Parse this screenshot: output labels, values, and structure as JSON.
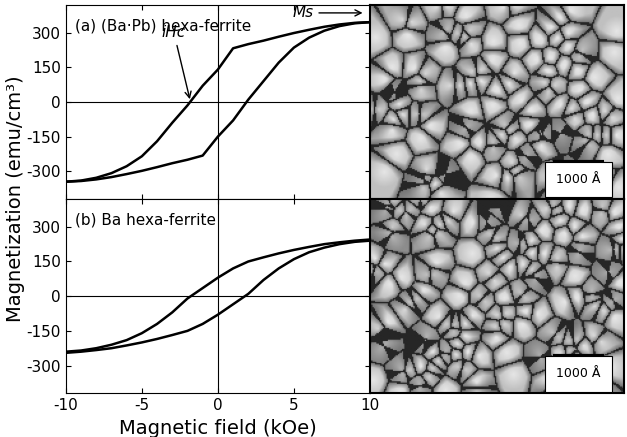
{
  "chart_data": [
    {
      "type": "line",
      "label": "(a) (Ba·Pb) hexa-ferrite",
      "xlim": [
        -10,
        10
      ],
      "xticks": [
        -10,
        -5,
        0,
        5,
        10
      ],
      "ylim": [
        -420,
        420
      ],
      "yticks": [
        -300,
        -150,
        0,
        150,
        300
      ],
      "tick_labels": "y",
      "series": [
        {
          "color": "#000000",
          "x": [
            -10,
            -9,
            -8,
            -7,
            -6,
            -5,
            -4,
            -3,
            -2,
            -1,
            0,
            1,
            2,
            3,
            4,
            5,
            6,
            7,
            8,
            9,
            10
          ],
          "values": [
            -345,
            -342,
            -335,
            -325,
            -312,
            -298,
            -282,
            -265,
            -250,
            -232,
            -150,
            -80,
            10,
            90,
            170,
            235,
            278,
            308,
            328,
            340,
            345
          ]
        },
        {
          "color": "#000000",
          "x": [
            10,
            9,
            8,
            7,
            6,
            5,
            4,
            3,
            2,
            1,
            0,
            -1,
            -2,
            -3,
            -4,
            -5,
            -6,
            -7,
            -8,
            -9,
            -10
          ],
          "values": [
            345,
            342,
            335,
            325,
            312,
            298,
            282,
            265,
            250,
            232,
            140,
            70,
            -15,
            -90,
            -170,
            -235,
            -278,
            -308,
            -328,
            -340,
            -345
          ]
        }
      ],
      "annotations": [
        {
          "text": "iHc",
          "x": -1.8,
          "y": 0
        },
        {
          "text": "Ms",
          "x": 9.7,
          "y": 385
        }
      ]
    },
    {
      "type": "line",
      "label": "(b) Ba hexa-ferrite",
      "xlim": [
        -10,
        10
      ],
      "xticks": [
        -10,
        -5,
        0,
        5,
        10
      ],
      "ylim": [
        -420,
        420
      ],
      "yticks": [
        -300,
        -150,
        0,
        150,
        300
      ],
      "tick_labels": true,
      "series": [
        {
          "color": "#000000",
          "x": [
            -10,
            -9,
            -8,
            -7,
            -6,
            -5,
            -4,
            -3,
            -2,
            -1,
            0,
            1,
            2,
            3,
            4,
            5,
            6,
            7,
            8,
            9,
            10
          ],
          "values": [
            -245,
            -240,
            -233,
            -225,
            -213,
            -200,
            -185,
            -168,
            -150,
            -120,
            -80,
            -35,
            10,
            70,
            120,
            160,
            190,
            210,
            225,
            235,
            240
          ]
        },
        {
          "color": "#000000",
          "x": [
            10,
            9,
            8,
            7,
            6,
            5,
            4,
            3,
            2,
            1,
            0,
            -1,
            -2,
            -3,
            -4,
            -5,
            -6,
            -7,
            -8,
            -9,
            -10
          ],
          "values": [
            245,
            240,
            233,
            225,
            213,
            200,
            185,
            168,
            150,
            120,
            80,
            35,
            -10,
            -70,
            -120,
            -160,
            -190,
            -210,
            -225,
            -235,
            -240
          ]
        }
      ]
    }
  ],
  "x_label": "Magnetic field (kOe)",
  "y_label": "Magnetization (emu/cm³)",
  "micrographs": [
    {
      "scale_bar": "1000 Å"
    },
    {
      "scale_bar": "1000 Å"
    }
  ]
}
